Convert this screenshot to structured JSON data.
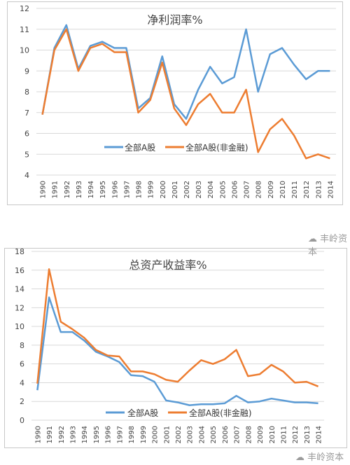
{
  "chart_data": [
    {
      "type": "line",
      "title": "净利润率%",
      "x": [
        "1990",
        "1991",
        "1992",
        "1993",
        "1994",
        "1995",
        "1996",
        "1997",
        "1998",
        "1999",
        "2000",
        "2001",
        "2002",
        "2003",
        "2004",
        "2005",
        "2006",
        "2007",
        "2008",
        "2009",
        "2010",
        "2011",
        "2012",
        "2013",
        "2014"
      ],
      "ylim": [
        4,
        12
      ],
      "yticks": [
        4,
        5,
        6,
        7,
        8,
        9,
        10,
        11,
        12
      ],
      "grid": true,
      "legend": "bottom-center",
      "series": [
        {
          "name": "全部A股",
          "color": "#5b9bd5",
          "values": [
            6.9,
            10.1,
            11.2,
            9.1,
            10.2,
            10.4,
            10.1,
            10.1,
            7.2,
            7.7,
            9.7,
            7.4,
            6.7,
            8.1,
            9.2,
            8.4,
            8.7,
            11.0,
            8.0,
            9.8,
            10.1,
            9.3,
            8.6,
            9.0,
            9.0
          ]
        },
        {
          "name": "全部A股(非金融)",
          "color": "#ed7d31",
          "values": [
            6.9,
            10.0,
            11.0,
            9.0,
            10.1,
            10.3,
            9.9,
            9.9,
            7.0,
            7.6,
            9.4,
            7.2,
            6.4,
            7.4,
            7.9,
            7.0,
            7.0,
            8.1,
            5.1,
            6.2,
            6.7,
            5.9,
            4.8,
            5.0,
            4.8
          ]
        }
      ]
    },
    {
      "type": "line",
      "title": "总资产收益率%",
      "x": [
        "1990",
        "1991",
        "1992",
        "1993",
        "1994",
        "1995",
        "1996",
        "1997",
        "1998",
        "1999",
        "2000",
        "2001",
        "2002",
        "2003",
        "2004",
        "2005",
        "2006",
        "2007",
        "2008",
        "2009",
        "2010",
        "2011",
        "2012",
        "2013",
        "2014"
      ],
      "ylim": [
        0,
        18
      ],
      "yticks": [
        0,
        2,
        4,
        6,
        8,
        10,
        12,
        14,
        16,
        18
      ],
      "grid": true,
      "legend": "bottom-center",
      "series": [
        {
          "name": "全部A股",
          "color": "#5b9bd5",
          "values": [
            3.2,
            13.1,
            9.4,
            9.4,
            8.5,
            7.3,
            6.8,
            6.2,
            4.8,
            4.7,
            4.1,
            2.1,
            1.9,
            1.6,
            1.7,
            1.7,
            1.8,
            2.6,
            1.9,
            2.0,
            2.3,
            2.1,
            1.9,
            1.9,
            1.8
          ]
        },
        {
          "name": "全部A股(非金融)",
          "color": "#ed7d31",
          "values": [
            3.9,
            16.1,
            10.5,
            9.7,
            8.8,
            7.5,
            6.9,
            6.8,
            5.2,
            5.2,
            4.9,
            4.3,
            4.1,
            5.3,
            6.4,
            6.0,
            6.5,
            7.5,
            4.7,
            4.9,
            5.9,
            5.2,
            4.0,
            4.1,
            3.6
          ]
        }
      ]
    }
  ],
  "watermarks": [
    "丰岭资本",
    "丰岭资本"
  ]
}
